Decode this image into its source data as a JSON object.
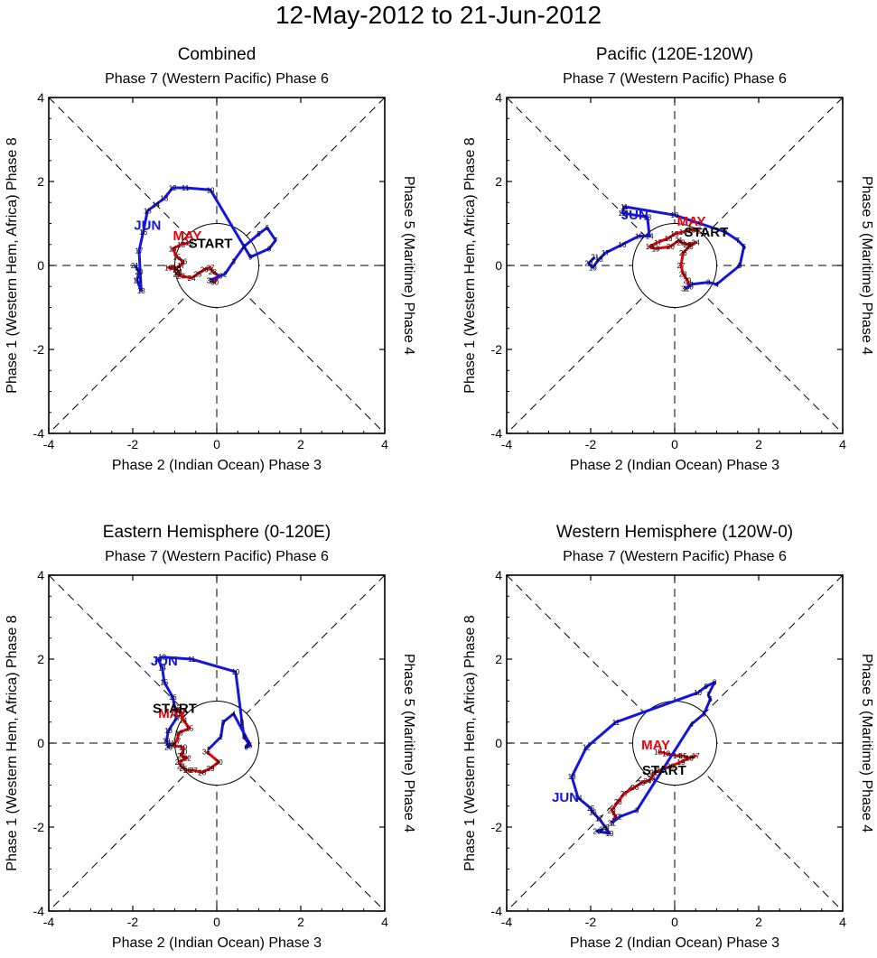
{
  "title": "12-May-2012 to 21-Jun-2012",
  "colors": {
    "may": "#e8000b",
    "jun": "#1515e0",
    "frame": "#000000"
  },
  "axis": {
    "xlabel": "Phase 2 (Indian Ocean) Phase 3",
    "ylabel": "Phase 1 (Western Hem, Africa) Phase 8",
    "top_label": "Phase 7 (Western Pacific) Phase 6",
    "right_label": "Phase 5 (Maritime) Phase 4",
    "ticks": [
      -4,
      -2,
      0,
      2,
      4
    ],
    "xlim": [
      -4,
      4
    ],
    "ylim": [
      -4,
      4
    ]
  },
  "start_label": "START",
  "chart_data": [
    {
      "type": "line",
      "title": "Combined",
      "month_labels": {
        "may": {
          "text": "MAY",
          "x": -0.7,
          "y": 0.6
        },
        "jun": {
          "text": "JUN",
          "x": -1.65,
          "y": 0.85
        }
      },
      "start": {
        "x": -0.15,
        "y": 0.55
      },
      "series": [
        {
          "name": "May",
          "day_start": 12,
          "x": [
            -0.65,
            -0.85,
            -1.05,
            -0.95,
            -0.8,
            -0.85,
            -0.95,
            -1.15,
            -0.95,
            -0.9,
            -0.95,
            -0.85,
            -0.6,
            -0.45,
            -0.3,
            -0.15,
            -0.1,
            0.05,
            -0.05,
            -0.15
          ],
          "y": [
            0.55,
            0.5,
            0.4,
            0.2,
            0.1,
            0.0,
            -0.05,
            -0.05,
            -0.1,
            -0.15,
            -0.2,
            -0.25,
            -0.3,
            -0.2,
            -0.1,
            -0.05,
            -0.15,
            -0.25,
            -0.4,
            -0.35
          ]
        },
        {
          "name": "Jun",
          "day_start": 1,
          "x": [
            -0.15,
            0.2,
            0.4,
            0.65,
            1.0,
            1.2,
            1.4,
            1.25,
            0.8,
            -0.15,
            -0.75,
            -1.05,
            -1.25,
            -1.45,
            -1.65,
            -1.75,
            -1.85,
            -1.8,
            -1.9,
            -1.85,
            -1.95
          ],
          "y": [
            -0.35,
            -0.2,
            0.1,
            0.45,
            0.75,
            0.9,
            0.6,
            0.4,
            0.2,
            1.8,
            1.85,
            1.85,
            1.6,
            1.45,
            1.3,
            0.8,
            0.35,
            -0.6,
            -0.35,
            -0.15,
            0.0
          ]
        }
      ]
    },
    {
      "type": "line",
      "title": "Pacific (120E-120W)",
      "month_labels": {
        "may": {
          "text": "MAY",
          "x": 0.4,
          "y": 0.95
        },
        "jun": {
          "text": "JUN",
          "x": -0.95,
          "y": 1.1
        }
      },
      "start": {
        "x": 0.75,
        "y": 0.82
      },
      "series": [
        {
          "name": "May",
          "day_start": 12,
          "x": [
            0.6,
            0.4,
            0.2,
            0.0,
            -0.15,
            -0.4,
            -0.6,
            -0.45,
            -0.1,
            0.1,
            0.15,
            0.3,
            0.5,
            0.35,
            0.2,
            0.15,
            0.2,
            0.3,
            0.35,
            0.25
          ],
          "y": [
            0.82,
            0.85,
            0.8,
            0.75,
            0.65,
            0.55,
            0.45,
            0.4,
            0.45,
            0.6,
            0.55,
            0.5,
            0.55,
            0.45,
            0.3,
            0.0,
            -0.2,
            -0.35,
            -0.5,
            -0.55
          ]
        },
        {
          "name": "Jun",
          "day_start": 1,
          "x": [
            0.25,
            0.4,
            0.8,
            1.0,
            1.55,
            1.65,
            1.5,
            1.2,
            0.6,
            0.0,
            -1.2,
            -1.25,
            -0.65,
            -0.6,
            -0.85,
            -1.25,
            -1.65,
            -1.8,
            -1.95,
            -2.05,
            -1.9
          ],
          "y": [
            -0.55,
            -0.45,
            -0.4,
            -0.45,
            0.0,
            0.45,
            0.6,
            0.8,
            1.0,
            1.2,
            1.4,
            1.25,
            1.15,
            0.7,
            0.7,
            0.5,
            0.3,
            0.15,
            -0.05,
            0.05,
            0.2
          ]
        }
      ]
    },
    {
      "type": "line",
      "title": "Eastern Hemisphere (0-120E)",
      "month_labels": {
        "may": {
          "text": "MAY",
          "x": -1.05,
          "y": 0.6
        },
        "jun": {
          "text": "JUN",
          "x": -1.25,
          "y": 1.85
        }
      },
      "start": {
        "x": -1.0,
        "y": 0.85
      },
      "series": [
        {
          "name": "May",
          "day_start": 12,
          "x": [
            -0.95,
            -0.85,
            -0.8,
            -0.65,
            -0.9,
            -0.95,
            -1.05,
            -0.8,
            -0.8,
            -0.85,
            -0.7,
            -0.9,
            -0.85,
            -0.8,
            -0.7,
            -0.55,
            -0.35,
            -0.15,
            0.05,
            -0.25
          ],
          "y": [
            0.85,
            0.7,
            0.55,
            0.35,
            0.25,
            0.05,
            -0.05,
            -0.1,
            -0.2,
            -0.3,
            -0.35,
            -0.45,
            -0.55,
            -0.6,
            -0.65,
            -0.65,
            -0.7,
            -0.6,
            -0.45,
            -0.2
          ]
        },
        {
          "name": "Jun",
          "day_start": 1,
          "x": [
            -0.2,
            0.1,
            0.15,
            0.4,
            0.8,
            0.7,
            0.75,
            0.65,
            0.6,
            0.45,
            -0.6,
            -1.3,
            -1.4,
            -1.3,
            -1.25,
            -1.05,
            -0.95,
            -1.15,
            -1.2,
            -1.15,
            -1.1
          ],
          "y": [
            -0.15,
            0.15,
            0.5,
            0.7,
            -0.05,
            -0.1,
            0.0,
            0.15,
            0.5,
            1.7,
            2.0,
            2.05,
            2.0,
            1.8,
            1.45,
            1.1,
            0.6,
            0.3,
            0.05,
            -0.1,
            0.0
          ]
        }
      ]
    },
    {
      "type": "line",
      "title": "Western Hemisphere (120W-0)",
      "month_labels": {
        "may": {
          "text": "MAY",
          "x": -0.45,
          "y": -0.15
        },
        "jun": {
          "text": "JUN",
          "x": -2.6,
          "y": -1.4
        }
      },
      "start": {
        "x": -0.25,
        "y": -0.62
      },
      "series": [
        {
          "name": "May",
          "day_start": 12,
          "x": [
            -0.4,
            -0.2,
            0.05,
            0.2,
            0.35,
            0.5,
            0.35,
            0.15,
            -0.1,
            -0.35,
            -0.5,
            -0.55,
            -0.65,
            -0.8,
            -0.95,
            -1.2,
            -1.35,
            -1.5,
            -1.4,
            -1.5
          ],
          "y": [
            -0.2,
            -0.25,
            -0.3,
            -0.3,
            -0.35,
            -0.3,
            -0.35,
            -0.45,
            -0.55,
            -0.65,
            -0.7,
            -0.85,
            -0.9,
            -0.95,
            -1.05,
            -1.2,
            -1.4,
            -1.6,
            -1.75,
            -1.9
          ]
        },
        {
          "name": "Jun",
          "day_start": 1,
          "x": [
            -1.5,
            -1.3,
            -0.9,
            0.4,
            0.7,
            0.85,
            0.8,
            0.95,
            0.75,
            0.55,
            -1.4,
            -2.1,
            -2.45,
            -2.3,
            -2.0,
            -1.95,
            -1.8,
            -1.65,
            -1.55,
            -1.85,
            -1.7
          ],
          "y": [
            -1.9,
            -1.75,
            -1.6,
            0.45,
            0.7,
            1.05,
            1.15,
            1.45,
            1.35,
            1.2,
            0.5,
            -0.1,
            -0.8,
            -1.3,
            -1.55,
            -1.65,
            -1.8,
            -2.0,
            -2.15,
            -2.1,
            -2.05
          ]
        }
      ]
    }
  ]
}
